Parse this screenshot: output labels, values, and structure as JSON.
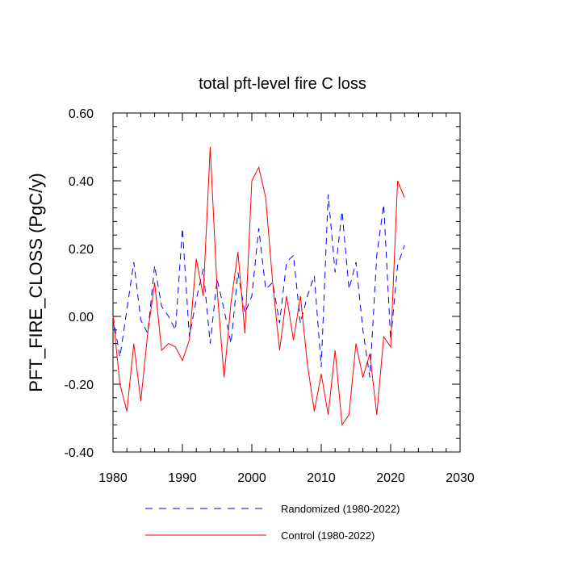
{
  "chart_data": {
    "type": "line",
    "title": "total pft-level fire C loss",
    "xlabel": "",
    "ylabel": "PFT_FIRE_CLOSS  (PgC/y)",
    "xlim": [
      1980,
      2030
    ],
    "ylim": [
      -0.4,
      0.6
    ],
    "x_ticks": [
      1980,
      1990,
      2000,
      2010,
      2020,
      2030
    ],
    "x_tick_labels": [
      "1980",
      "1990",
      "2000",
      "2010",
      "2020",
      "2030"
    ],
    "y_ticks": [
      -0.4,
      -0.2,
      0.0,
      0.2,
      0.4,
      0.6
    ],
    "y_tick_labels": [
      "-0.40",
      "-0.20",
      "0.00",
      "0.20",
      "0.40",
      "0.60"
    ],
    "grid": false,
    "legend_position": "bottom",
    "x": [
      1980,
      1981,
      1982,
      1983,
      1984,
      1985,
      1986,
      1987,
      1988,
      1989,
      1990,
      1991,
      1992,
      1993,
      1994,
      1995,
      1996,
      1997,
      1998,
      1999,
      2000,
      2001,
      2002,
      2003,
      2004,
      2005,
      2006,
      2007,
      2008,
      2009,
      2010,
      2011,
      2012,
      2013,
      2014,
      2015,
      2016,
      2017,
      2018,
      2019,
      2020,
      2021,
      2022
    ],
    "series": [
      {
        "name": "Randomized (1980-2022)",
        "color": "#0000ff",
        "dash": "dashed",
        "values": [
          0.0,
          -0.12,
          0.02,
          0.16,
          -0.01,
          -0.05,
          0.15,
          0.03,
          0.0,
          -0.04,
          0.26,
          -0.06,
          0.05,
          0.14,
          -0.08,
          0.11,
          0.02,
          -0.08,
          0.13,
          0.01,
          0.06,
          0.26,
          0.08,
          0.1,
          -0.02,
          0.16,
          0.18,
          -0.02,
          0.06,
          0.12,
          -0.15,
          0.36,
          0.13,
          0.31,
          0.08,
          0.16,
          -0.04,
          -0.18,
          0.18,
          0.33,
          -0.07,
          0.15,
          0.21
        ]
      },
      {
        "name": "Control (1980-2022)",
        "color": "#ff0000",
        "dash": "solid",
        "values": [
          0.0,
          -0.2,
          -0.28,
          -0.08,
          -0.25,
          -0.05,
          0.1,
          -0.1,
          -0.08,
          -0.09,
          -0.13,
          -0.07,
          0.17,
          0.06,
          0.5,
          0.08,
          -0.18,
          0.04,
          0.19,
          -0.05,
          0.4,
          0.44,
          0.35,
          0.1,
          -0.1,
          0.06,
          -0.07,
          0.06,
          -0.14,
          -0.28,
          -0.17,
          -0.29,
          -0.1,
          -0.32,
          -0.29,
          -0.08,
          -0.18,
          -0.11,
          -0.29,
          -0.06,
          -0.09,
          0.4,
          0.35
        ]
      }
    ]
  }
}
